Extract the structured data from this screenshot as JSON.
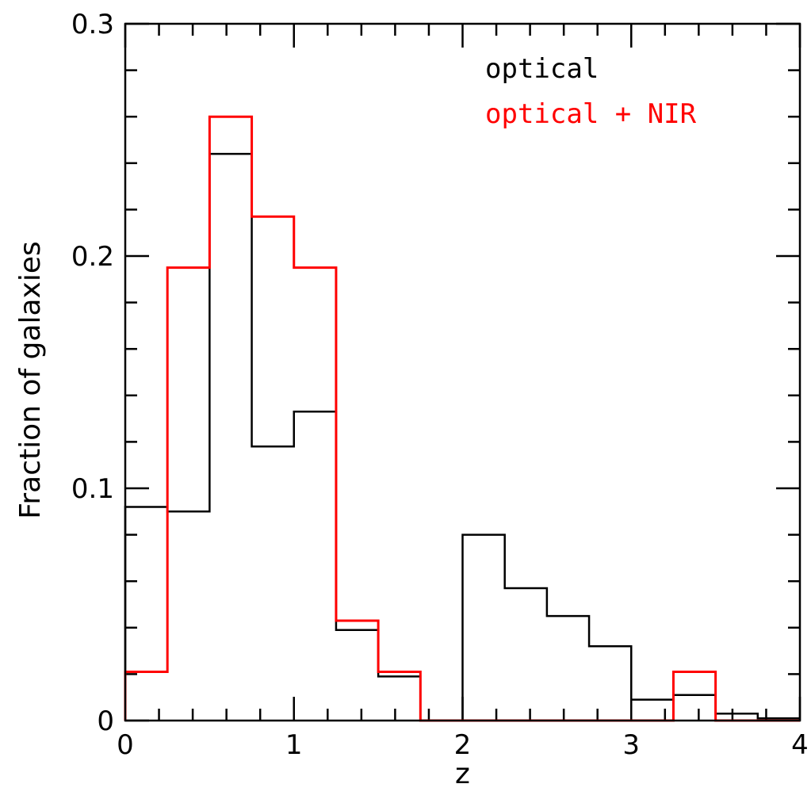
{
  "chart_data": {
    "type": "line",
    "style": "histogram-step",
    "bin_edges": [
      0,
      0.25,
      0.5,
      0.75,
      1.0,
      1.25,
      1.5,
      1.75,
      2.0,
      2.25,
      2.5,
      2.75,
      3.0,
      3.25,
      3.5,
      3.75,
      4.0
    ],
    "series": [
      {
        "name": "optical",
        "color": "#000000",
        "values": [
          0.092,
          0.09,
          0.244,
          0.118,
          0.133,
          0.039,
          0.019,
          0.0,
          0.08,
          0.057,
          0.045,
          0.032,
          0.009,
          0.011,
          0.003,
          0.001
        ]
      },
      {
        "name": "optical + NIR",
        "color": "#ff0000",
        "values": [
          0.021,
          0.195,
          0.26,
          0.217,
          0.195,
          0.043,
          0.021,
          0.0,
          0.0,
          0.0,
          0.0,
          0.0,
          0.0,
          0.021,
          0.0,
          0.0
        ]
      }
    ],
    "xlabel": "z",
    "ylabel": "Fraction of galaxies",
    "xlim": [
      0,
      4
    ],
    "ylim": [
      0,
      0.3
    ],
    "x_ticks": [
      0,
      1,
      2,
      3,
      4
    ],
    "x_tick_labels": [
      "0",
      "1",
      "2",
      "3",
      "4"
    ],
    "y_ticks": [
      0,
      0.1,
      0.2,
      0.3
    ],
    "y_tick_labels": [
      "0",
      "0.1",
      "0.2",
      "0.3"
    ],
    "x_minor_step": 0.2,
    "y_minor_step": 0.02,
    "grid": false,
    "legend_position": "top-right"
  }
}
